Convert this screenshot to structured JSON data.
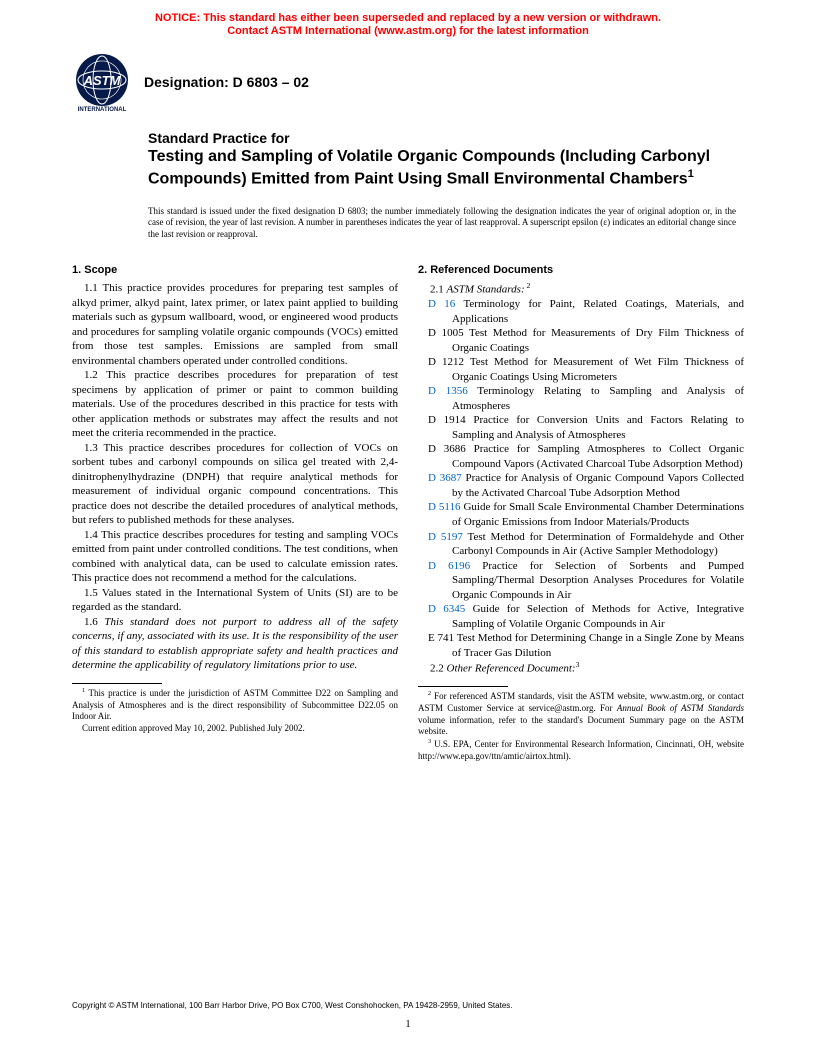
{
  "notice": {
    "line1": "NOTICE: This standard has either been superseded and replaced by a new version or withdrawn.",
    "line2": "Contact ASTM International (www.astm.org) for the latest information",
    "color": "#ff0000"
  },
  "logo": {
    "text_top": "ASTM",
    "text_bottom": "INTERNATIONAL",
    "bg_color": "#061a4a",
    "fg_color": "#ffffff"
  },
  "designation": "Designation: D 6803 – 02",
  "title": {
    "prefix": "Standard Practice for",
    "main": "Testing and Sampling of Volatile Organic Compounds (Including Carbonyl Compounds) Emitted from Paint Using Small Environmental Chambers",
    "super": "1"
  },
  "issuance": "This standard is issued under the fixed designation D 6803; the number immediately following the designation indicates the year of original adoption or, in the case of revision, the year of last revision. A number in parentheses indicates the year of last reapproval. A superscript epsilon (ε) indicates an editorial change since the last revision or reapproval.",
  "scope": {
    "heading": "1. Scope",
    "p1": "1.1 This practice provides procedures for preparing test samples of alkyd primer, alkyd paint, latex primer, or latex paint applied to building materials such as gypsum wallboard, wood, or engineered wood products and procedures for sampling volatile organic compounds (VOCs) emitted from those test samples. Emissions are sampled from small environmental chambers operated under controlled conditions.",
    "p2": "1.2 This practice describes procedures for preparation of test specimens by application of primer or paint to common building materials. Use of the procedures described in this practice for tests with other application methods or substrates may affect the results and not meet the criteria recommended in the practice.",
    "p3": "1.3 This practice describes procedures for collection of VOCs on sorbent tubes and carbonyl compounds on silica gel treated with 2,4-dinitrophenylhydrazine (DNPH) that require analytical methods for measurement of individual organic compound concentrations. This practice does not describe the detailed procedures of analytical methods, but refers to published methods for these analyses.",
    "p4": "1.4 This practice describes procedures for testing and sampling VOCs emitted from paint under controlled conditions. The test conditions, when combined with analytical data, can be used to calculate emission rates. This practice does not recommend a method for the calculations.",
    "p5": "1.5 Values stated in the International System of Units (SI) are to be regarded as the standard.",
    "p6": "1.6 This standard does not purport to address all of the safety concerns, if any, associated with its use. It is the responsibility of the user of this standard to establish appropriate safety and health practices and determine the applicability of regulatory limitations prior to use."
  },
  "refs": {
    "heading": "2. Referenced Documents",
    "sub1_prefix": "2.1 ",
    "sub1_italic": "ASTM Standards:",
    "sub1_super": " 2",
    "items": [
      {
        "code": "D 16",
        "link": true,
        "text": " Terminology for Paint, Related Coatings, Materials, and Applications"
      },
      {
        "code": "D 1005",
        "link": false,
        "text": " Test Method for Measurements of Dry Film Thickness of Organic Coatings"
      },
      {
        "code": "D 1212",
        "link": false,
        "text": " Test Method for Measurement of Wet Film Thickness of Organic Coatings Using Micrometers"
      },
      {
        "code": "D 1356",
        "link": true,
        "text": " Terminology Relating to Sampling and Analysis of Atmospheres"
      },
      {
        "code": "D 1914",
        "link": false,
        "text": " Practice for Conversion Units and Factors Relating to Sampling and Analysis of Atmospheres"
      },
      {
        "code": "D 3686",
        "link": false,
        "text": " Practice for Sampling Atmospheres to Collect Organic Compound Vapors (Activated Charcoal Tube Adsorption Method)"
      },
      {
        "code": "D 3687",
        "link": true,
        "text": " Practice for Analysis of Organic Compound Vapors Collected by the Activated Charcoal Tube Adsorption Method"
      },
      {
        "code": "D 5116",
        "link": true,
        "text": " Guide for Small Scale Environmental Chamber Determinations of Organic Emissions from Indoor Materials/Products"
      },
      {
        "code": "D 5197",
        "link": true,
        "text": " Test Method for Determination of Formaldehyde and Other Carbonyl Compounds in Air (Active Sampler Methodology)"
      },
      {
        "code": "D 6196",
        "link": true,
        "text": " Practice for Selection of Sorbents and Pumped Sampling/Thermal Desorption Analyses Procedures for Volatile Organic Compounds in Air"
      },
      {
        "code": "D 6345",
        "link": true,
        "text": " Guide for Selection of Methods for Active, Integrative Sampling of Volatile Organic Compounds in Air"
      },
      {
        "code": "E 741",
        "link": false,
        "text": " Test Method for Determining Change in a Single Zone by Means of Tracer Gas Dilution"
      }
    ],
    "sub2_prefix": "2.2 ",
    "sub2_italic": "Other Referenced Document:",
    "sub2_super": "3"
  },
  "footnotes_left": {
    "f1a": " This practice is under the jurisdiction of ASTM Committee D22 on Sampling and Analysis of Atmospheres and is the direct responsibility of Subcommittee D22.05 on Indoor Air.",
    "f1b": "Current edition approved May 10, 2002. Published July 2002."
  },
  "footnotes_right": {
    "f2_pre": " For referenced ASTM standards, visit the ASTM website, www.astm.org, or contact ASTM Customer Service at service@astm.org. For ",
    "f2_italic": "Annual Book of ASTM Standards",
    "f2_post": " volume information, refer to the standard's Document Summary page on the ASTM website.",
    "f3": " U.S. EPA, Center for Environmental Research Information, Cincinnati, OH, website http://www.epa.gov/ttn/amtic/airtox.html)."
  },
  "copyright": "Copyright © ASTM International, 100 Barr Harbor Drive, PO Box C700, West Conshohocken, PA 19428-2959, United States.",
  "page_number": "1",
  "link_color": "#0563c1"
}
